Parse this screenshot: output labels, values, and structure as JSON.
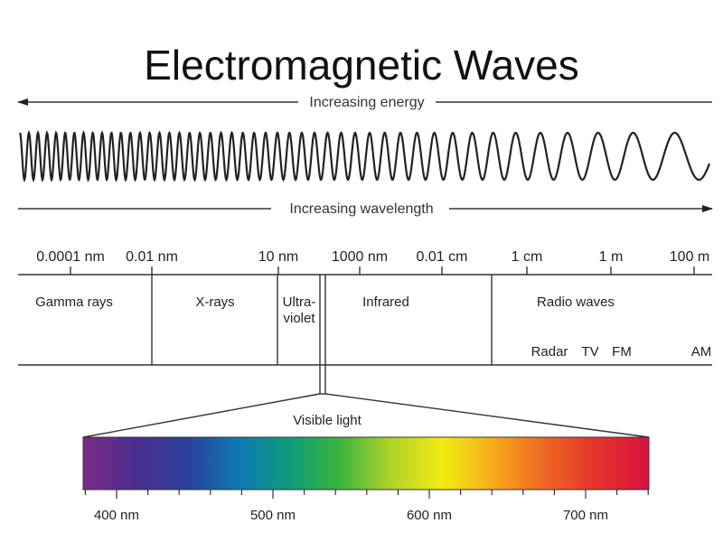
{
  "title": "Electromagnetic Waves",
  "energy_arrow_label": "Increasing energy",
  "wavelength_arrow_label": "Increasing wavelength",
  "scale_ticks": [
    "0.0001 nm",
    "0.01 nm",
    "10 nm",
    "1000 nm",
    "0.01 cm",
    "1 cm",
    "1 m",
    "100 m"
  ],
  "regions": [
    {
      "label": "Gamma rays"
    },
    {
      "label": "X-rays"
    },
    {
      "label_line1": "Ultra-",
      "label_line2": "violet"
    },
    {
      "label": "Infrared"
    },
    {
      "label": "Radio waves"
    }
  ],
  "radio_bands": [
    "Radar",
    "TV",
    "FM",
    "AM"
  ],
  "visible_light_label": "Visible light",
  "visible_ticks": [
    "400 nm",
    "500 nm",
    "600 nm",
    "700 nm"
  ],
  "spectrum_colors": [
    "#7d2a86",
    "#4a2e8f",
    "#2b3f9a",
    "#0f78b4",
    "#0d9c7a",
    "#3cb43c",
    "#b3d22a",
    "#f2ec12",
    "#f7a81c",
    "#ee6524",
    "#e4332b",
    "#d8103f"
  ]
}
